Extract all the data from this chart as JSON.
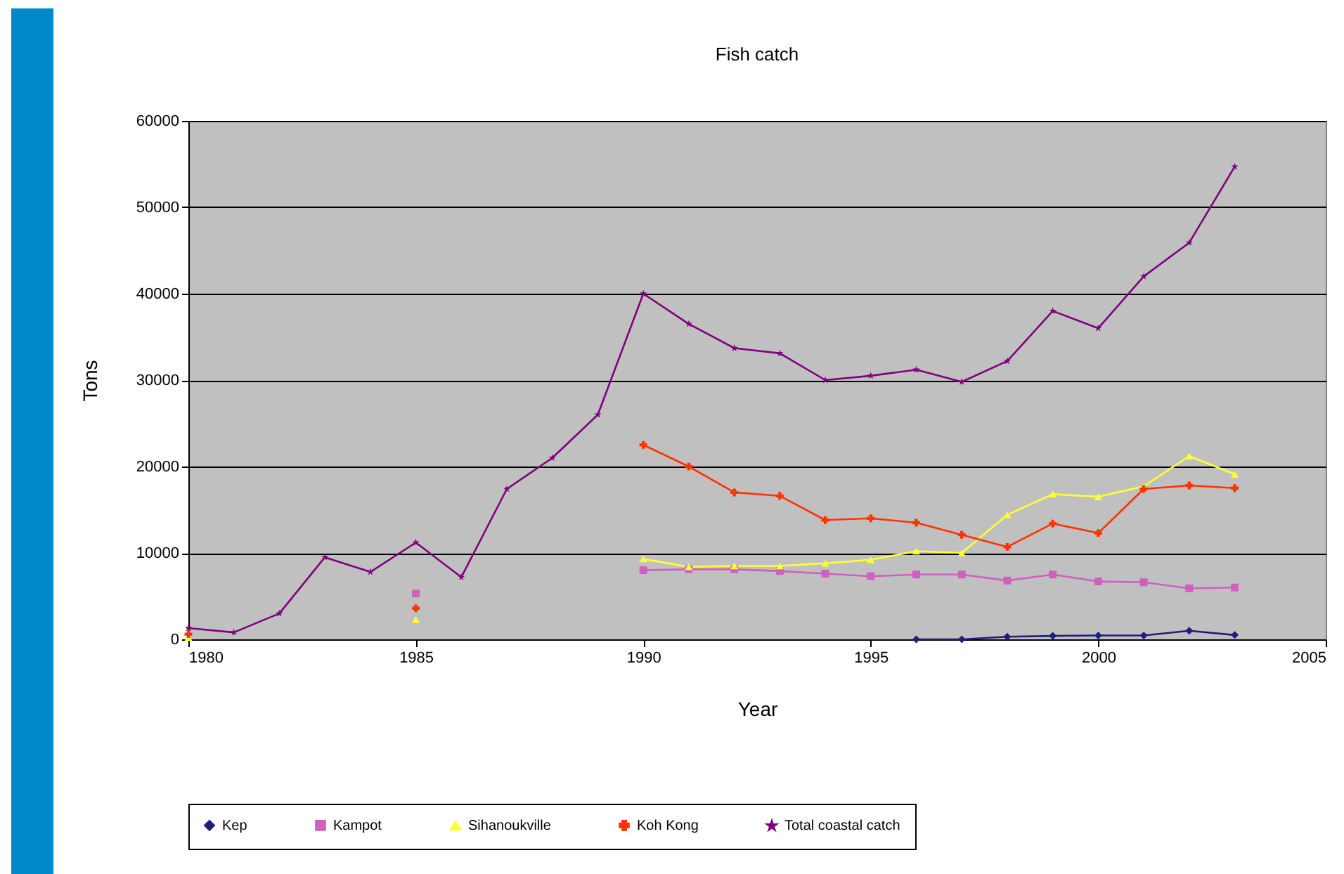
{
  "chart_data": {
    "type": "line",
    "title": "Fish catch",
    "xlabel": "Year",
    "ylabel": "Tons",
    "x": [
      1980,
      1981,
      1982,
      1983,
      1984,
      1985,
      1986,
      1987,
      1988,
      1989,
      1990,
      1991,
      1992,
      1993,
      1994,
      1995,
      1996,
      1997,
      1998,
      1999,
      2000,
      2001,
      2002,
      2003
    ],
    "series": [
      {
        "name": "Kep",
        "color": "#1f1f7a",
        "marker": "diamond",
        "values": [
          null,
          null,
          null,
          null,
          null,
          null,
          null,
          null,
          null,
          null,
          null,
          null,
          null,
          null,
          null,
          null,
          0,
          0,
          300,
          400,
          450,
          450,
          1000,
          500
        ]
      },
      {
        "name": "Kampot",
        "color": "#d060c0",
        "marker": "square",
        "values": [
          null,
          null,
          null,
          null,
          null,
          5300,
          null,
          null,
          null,
          null,
          8000,
          8100,
          8100,
          7900,
          7600,
          7300,
          7500,
          7500,
          6800,
          7500,
          6700,
          6600,
          5900,
          6000
        ]
      },
      {
        "name": "Sihanoukville",
        "color": "#ffff33",
        "marker": "triangle",
        "values": [
          200,
          null,
          null,
          null,
          null,
          2300,
          null,
          null,
          null,
          null,
          9300,
          8400,
          8500,
          8500,
          8800,
          9200,
          10200,
          10000,
          14400,
          16800,
          16500,
          17700,
          21200,
          19100
        ]
      },
      {
        "name": "Koh Kong",
        "color": "#ff3300",
        "marker": "cross",
        "values": [
          600,
          null,
          null,
          null,
          null,
          3600,
          null,
          null,
          null,
          null,
          22500,
          20000,
          17000,
          16600,
          13800,
          14000,
          13500,
          12100,
          10700,
          13400,
          12300,
          17400,
          17800,
          17500
        ]
      },
      {
        "name": "Total coastal catch",
        "color": "#800080",
        "marker": "star",
        "values": [
          1300,
          800,
          3000,
          9500,
          7800,
          11200,
          7200,
          17400,
          21000,
          26000,
          40000,
          36500,
          33700,
          33100,
          30000,
          30500,
          31200,
          29800,
          32200,
          38000,
          36000,
          42000,
          45900,
          54700
        ]
      }
    ],
    "xlim": [
      1980,
      2005
    ],
    "xticks": [
      1980,
      1985,
      1990,
      1995,
      2000,
      2005
    ],
    "ylim": [
      0,
      60000
    ],
    "yticks": [
      0,
      10000,
      20000,
      30000,
      40000,
      50000,
      60000
    ],
    "grid": "y",
    "legend": "bottom",
    "line_style": "solid"
  }
}
